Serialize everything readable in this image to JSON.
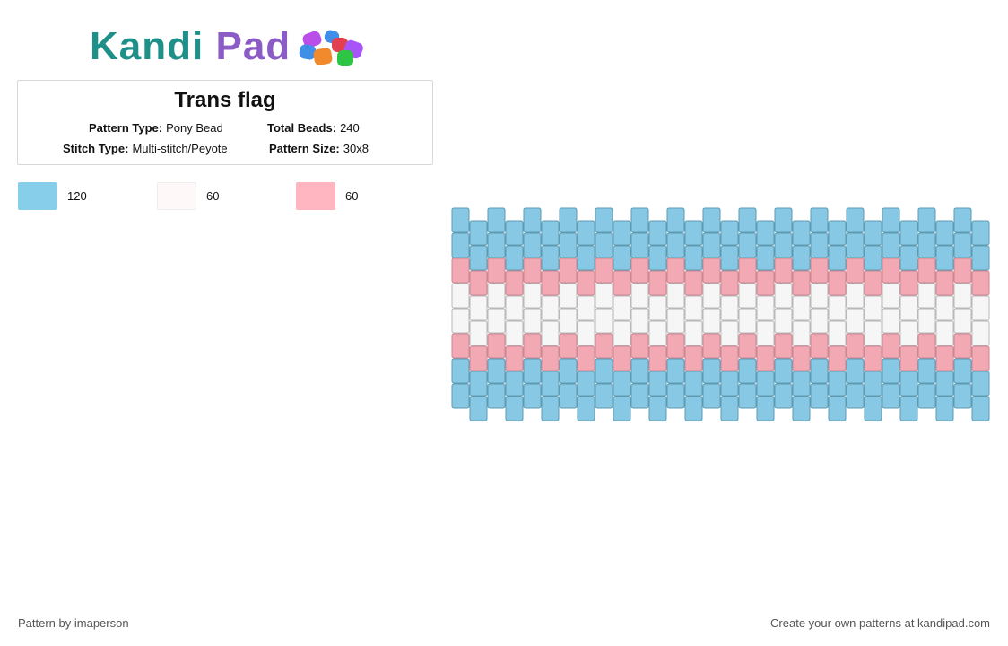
{
  "logo": {
    "word1": "Kandi",
    "word2": "Pad",
    "bead_colors": [
      "#b94ee8",
      "#3f8ee8",
      "#f08a2c",
      "#e2404f",
      "#2ec444",
      "#a855f7"
    ]
  },
  "pattern": {
    "title": "Trans flag",
    "type_label": "Pattern Type:",
    "type_value": "Pony Bead",
    "beads_label": "Total Beads:",
    "beads_value": "240",
    "stitch_label": "Stitch Type:",
    "stitch_value": "Multi-stitch/Peyote",
    "size_label": "Pattern Size:",
    "size_value": "30x8"
  },
  "palette": [
    {
      "color": "#87ceeb",
      "count": "120"
    },
    {
      "color": "#fff8f8",
      "count": "60"
    },
    {
      "color": "#ffb6c1",
      "count": "60"
    }
  ],
  "grid": {
    "columns": 30,
    "rows": [
      "blue",
      "blue",
      "pink",
      "white",
      "white",
      "pink",
      "blue",
      "blue"
    ],
    "colors": {
      "blue": {
        "fill": "#87c8e4",
        "stroke": "#5f9bb0"
      },
      "pink": {
        "fill": "#f2a9b4",
        "stroke": "#c98792"
      },
      "white": {
        "fill": "#f6f6f6",
        "stroke": "#b8b8b8"
      }
    }
  },
  "footer": {
    "left": "Pattern by imaperson",
    "right": "Create your own patterns at kandipad.com"
  }
}
